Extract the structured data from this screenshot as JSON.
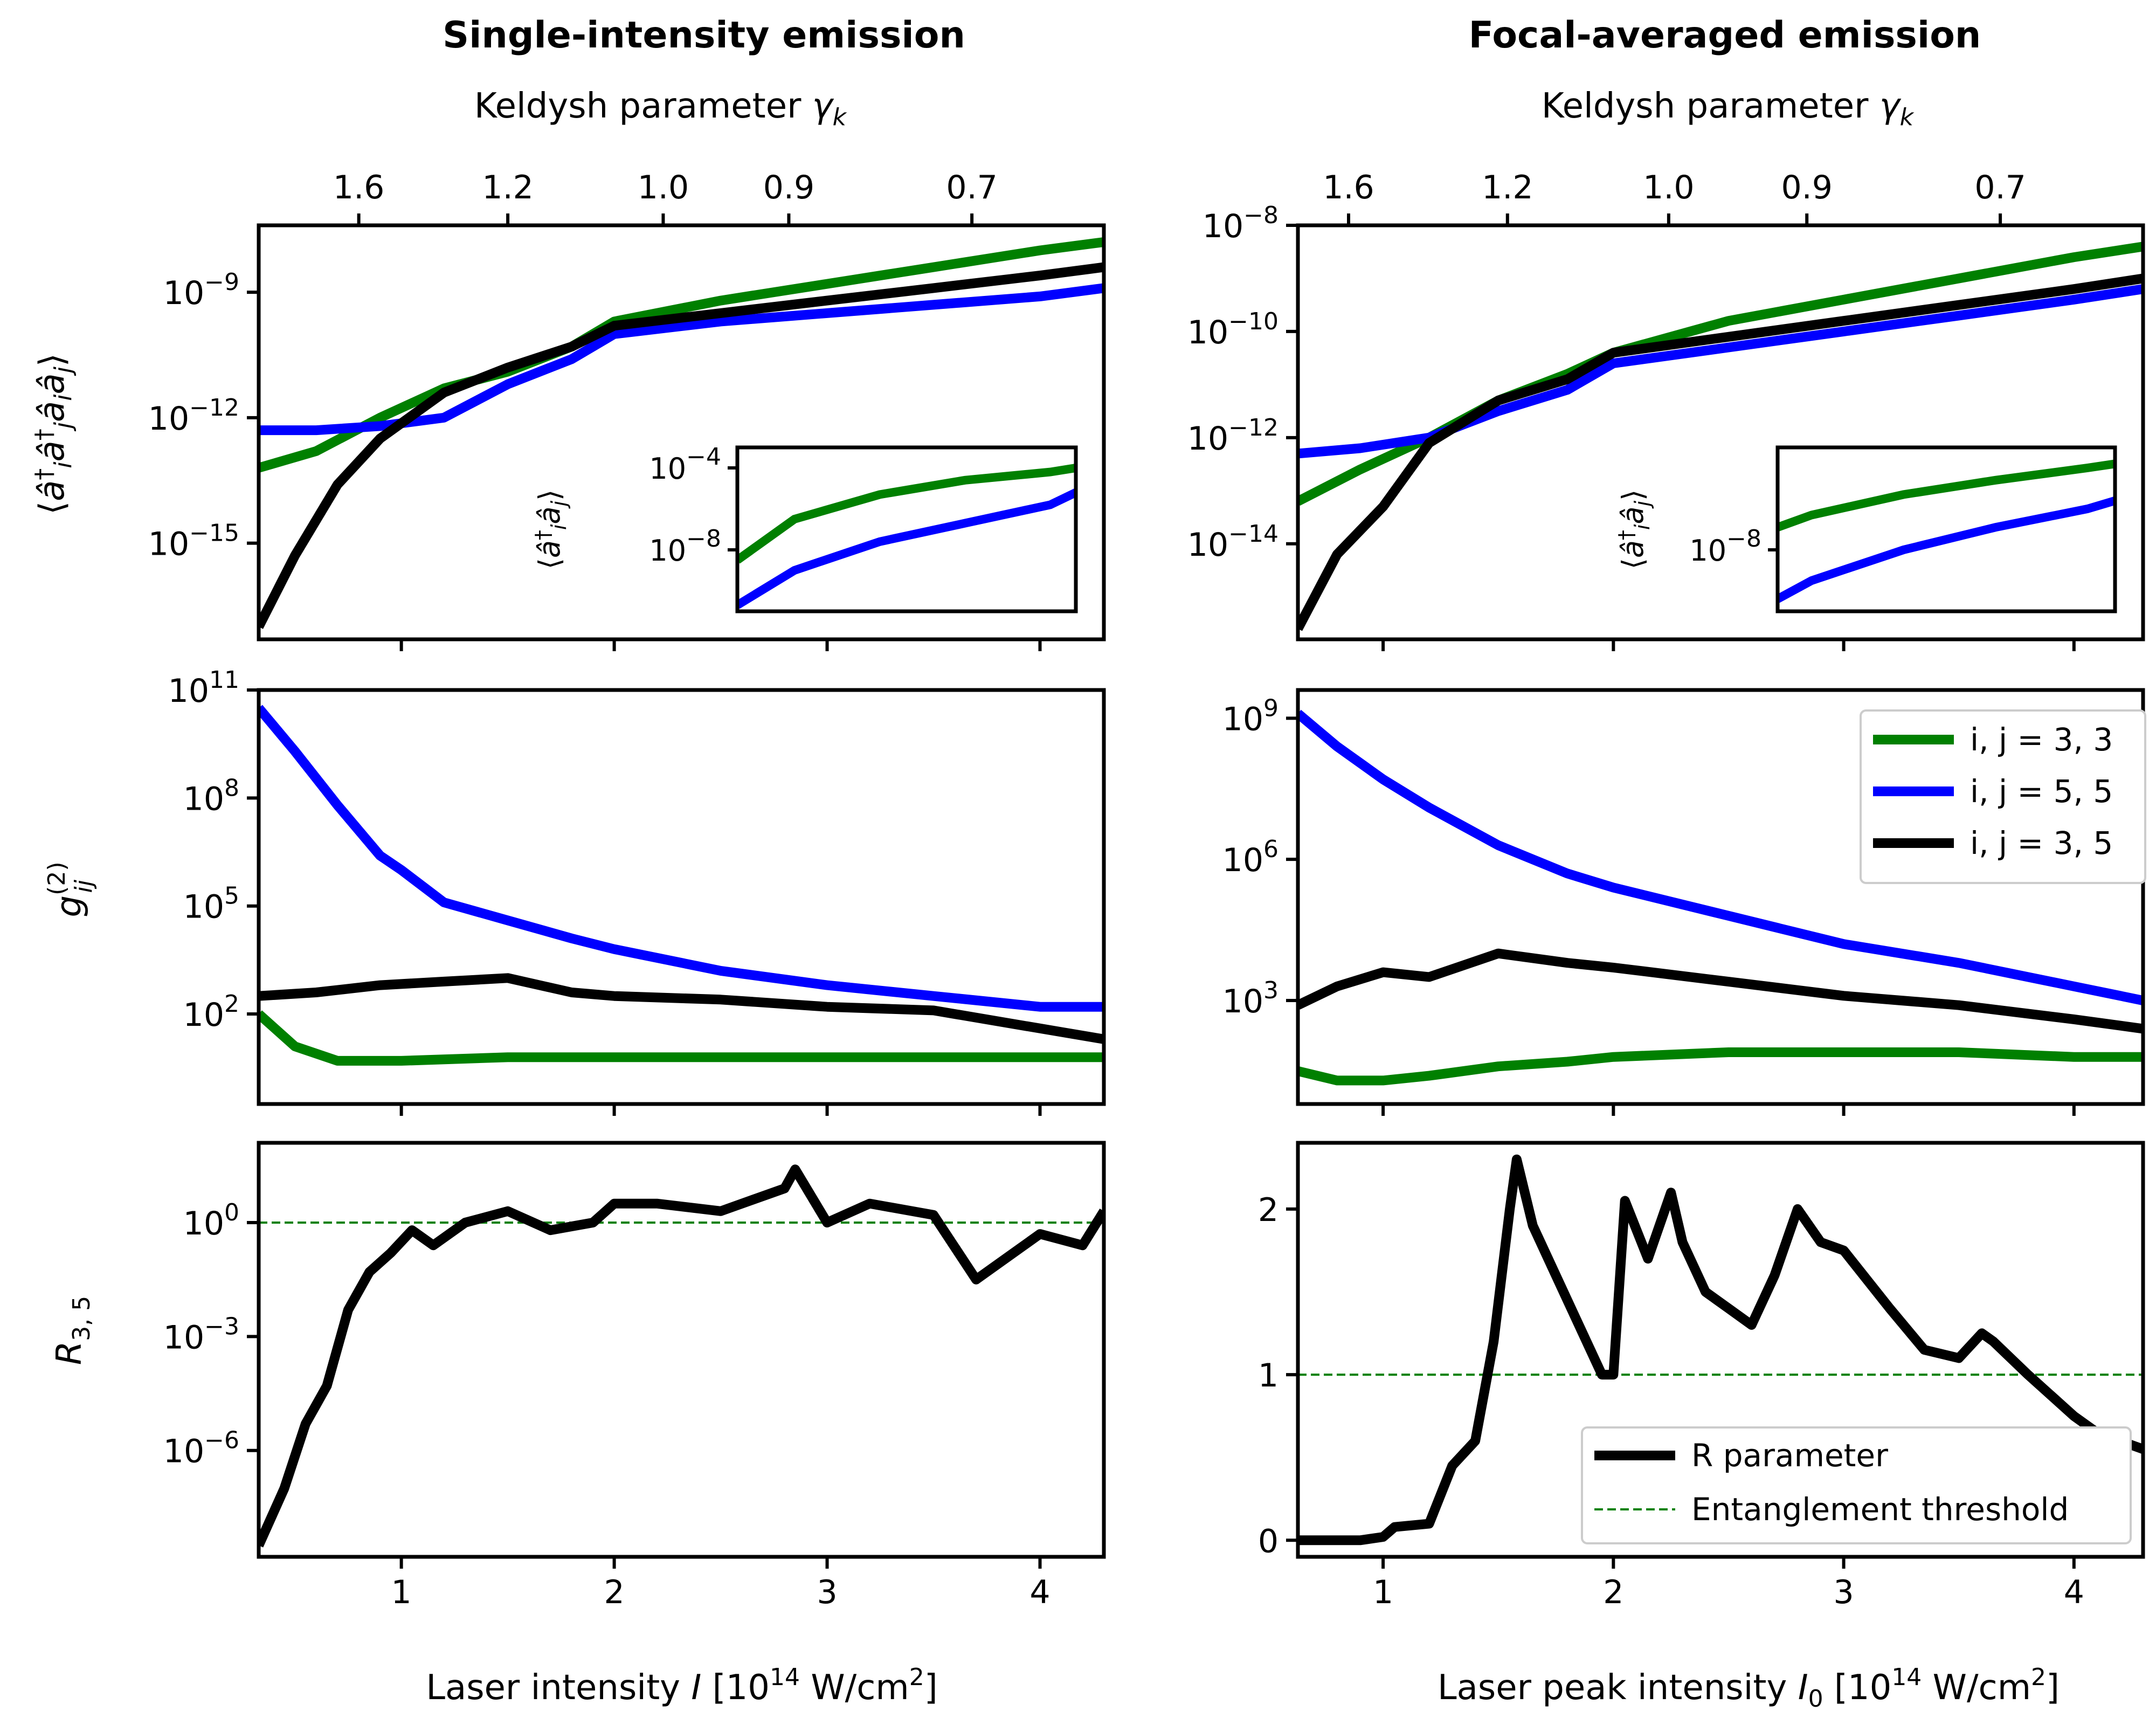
{
  "figure": {
    "left_title": "Single-intensity emission",
    "right_title": "Focal-averaged emission",
    "keldysh_label": "Keldysh parameter γ_k",
    "keldysh_ticks": [
      "1.6",
      "1.2",
      "1.0",
      "0.9",
      "0.7"
    ],
    "left_xlabel": "Laser intensity I [10^14 W/cm^2]",
    "right_xlabel": "Laser peak intensity I_0 [10^14 W/cm^2]",
    "row_ylabels": [
      "⟨â_i† â_j† â_i â_j⟩",
      "g_ij^(2)",
      "R_3,5"
    ],
    "inset_ylabel": "⟨â_i† â_j⟩",
    "colors": {
      "green": "#008000",
      "blue": "#0000ff",
      "black": "#000000",
      "threshold": "#008000"
    }
  },
  "legend": {
    "series": [
      "i, j = 3, 3",
      "i, j = 5, 5",
      "i, j = 3, 5"
    ],
    "r_parameter": "R parameter",
    "threshold": "Entanglement threshold"
  },
  "chart_data": [
    {
      "id": "left_top",
      "type": "line",
      "yscale": "log",
      "xlim": [
        0.33,
        4.3
      ],
      "ylim_log10": [
        -17.3,
        -7.4
      ],
      "xticks": [
        "1",
        "2",
        "3",
        "4"
      ],
      "yticks": [
        "10^-9",
        "10^-12",
        "10^-15"
      ],
      "series": [
        {
          "name": "i, j = 3, 3",
          "color": "#008000",
          "x": [
            0.33,
            0.6,
            0.9,
            1.2,
            1.5,
            1.8,
            2.0,
            2.5,
            3.0,
            3.5,
            4.0,
            4.3
          ],
          "y_log10": [
            -13.2,
            -12.8,
            -12.0,
            -11.3,
            -10.9,
            -10.3,
            -9.7,
            -9.2,
            -8.8,
            -8.4,
            -8.0,
            -7.8
          ]
        },
        {
          "name": "i, j = 5, 5",
          "color": "#0000ff",
          "x": [
            0.33,
            0.6,
            0.9,
            1.2,
            1.5,
            1.8,
            2.0,
            2.5,
            3.0,
            3.5,
            4.0,
            4.3
          ],
          "y_log10": [
            -12.3,
            -12.3,
            -12.2,
            -12.0,
            -11.2,
            -10.6,
            -10.0,
            -9.7,
            -9.5,
            -9.3,
            -9.1,
            -8.9
          ]
        },
        {
          "name": "i, j = 3, 5",
          "color": "#000000",
          "x": [
            0.33,
            0.5,
            0.7,
            0.9,
            1.2,
            1.5,
            1.8,
            2.0,
            2.5,
            3.0,
            3.5,
            4.0,
            4.3
          ],
          "y_log10": [
            -17.0,
            -15.3,
            -13.6,
            -12.5,
            -11.4,
            -10.8,
            -10.3,
            -9.8,
            -9.5,
            -9.2,
            -8.9,
            -8.6,
            -8.4
          ]
        }
      ],
      "inset": {
        "ylim_log10": [
          -11.0,
          -3.0
        ],
        "yticks": [
          "10^-4",
          "10^-8"
        ],
        "series": [
          {
            "name": "i, j = 3, 3",
            "color": "#008000",
            "x": [
              0.33,
              1,
              2,
              3,
              4,
              4.3
            ],
            "y_log10": [
              -8.5,
              -6.5,
              -5.3,
              -4.6,
              -4.2,
              -4.0
            ]
          },
          {
            "name": "i, j = 5, 5",
            "color": "#0000ff",
            "x": [
              0.33,
              1,
              2,
              3,
              4,
              4.3
            ],
            "y_log10": [
              -10.7,
              -9.0,
              -7.6,
              -6.7,
              -5.8,
              -5.2
            ]
          }
        ]
      }
    },
    {
      "id": "right_top",
      "type": "line",
      "yscale": "log",
      "xlim": [
        0.63,
        4.3
      ],
      "ylim_log10": [
        -15.8,
        -8.0
      ],
      "xticks": [
        "1",
        "2",
        "3",
        "4"
      ],
      "yticks": [
        "10^-8",
        "10^-10",
        "10^-12",
        "10^-14"
      ],
      "series": [
        {
          "name": "i, j = 3, 3",
          "color": "#008000",
          "x": [
            0.63,
            0.9,
            1.2,
            1.5,
            1.8,
            2.0,
            2.5,
            3.0,
            3.5,
            4.0,
            4.3
          ],
          "y_log10": [
            -13.2,
            -12.6,
            -12.0,
            -11.3,
            -10.8,
            -10.4,
            -9.8,
            -9.4,
            -9.0,
            -8.6,
            -8.4
          ]
        },
        {
          "name": "i, j = 5, 5",
          "color": "#0000ff",
          "x": [
            0.63,
            0.9,
            1.2,
            1.5,
            1.8,
            2.0,
            2.5,
            3.0,
            3.5,
            4.0,
            4.3
          ],
          "y_log10": [
            -12.3,
            -12.2,
            -12.0,
            -11.5,
            -11.1,
            -10.6,
            -10.3,
            -10.0,
            -9.7,
            -9.4,
            -9.2
          ]
        },
        {
          "name": "i, j = 3, 5",
          "color": "#000000",
          "x": [
            0.63,
            0.8,
            1.0,
            1.2,
            1.5,
            1.8,
            2.0,
            2.5,
            3.0,
            3.5,
            4.0,
            4.3
          ],
          "y_log10": [
            -15.6,
            -14.2,
            -13.3,
            -12.1,
            -11.3,
            -10.9,
            -10.4,
            -10.1,
            -9.8,
            -9.5,
            -9.2,
            -9.0
          ]
        }
      ],
      "inset": {
        "ylim_log10": [
          -11.0,
          -3.0
        ],
        "yticks": [
          "10^-8"
        ],
        "series": [
          {
            "name": "i, j = 3, 3",
            "color": "#008000",
            "x": [
              0.63,
              1,
              2,
              3,
              4,
              4.3
            ],
            "y_log10": [
              -6.9,
              -6.3,
              -5.3,
              -4.6,
              -4.0,
              -3.8
            ]
          },
          {
            "name": "i, j = 5, 5",
            "color": "#0000ff",
            "x": [
              0.63,
              1,
              2,
              3,
              4,
              4.3
            ],
            "y_log10": [
              -10.4,
              -9.5,
              -8.0,
              -6.9,
              -6.0,
              -5.6
            ]
          }
        ]
      }
    },
    {
      "id": "left_mid",
      "type": "line",
      "yscale": "log",
      "xlim": [
        0.33,
        4.3
      ],
      "ylim_log10": [
        -0.5,
        11.0
      ],
      "xticks": [
        "1",
        "2",
        "3",
        "4"
      ],
      "yticks": [
        "10^11",
        "10^8",
        "10^5",
        "10^2"
      ],
      "series": [
        {
          "name": "i, j = 5, 5",
          "color": "#0000ff",
          "x": [
            0.33,
            0.5,
            0.7,
            0.9,
            1.0,
            1.2,
            1.5,
            1.8,
            2.0,
            2.5,
            3.0,
            3.5,
            4.0,
            4.3
          ],
          "y_log10": [
            10.5,
            9.3,
            7.8,
            6.4,
            6.0,
            5.1,
            4.6,
            4.1,
            3.8,
            3.2,
            2.8,
            2.5,
            2.2,
            2.2
          ]
        },
        {
          "name": "i, j = 3, 5",
          "color": "#000000",
          "x": [
            0.33,
            0.6,
            0.9,
            1.2,
            1.5,
            1.8,
            2.0,
            2.5,
            3.0,
            3.5,
            4.0,
            4.3
          ],
          "y_log10": [
            2.5,
            2.6,
            2.8,
            2.9,
            3.0,
            2.6,
            2.5,
            2.4,
            2.2,
            2.1,
            1.6,
            1.3
          ]
        },
        {
          "name": "i, j = 3, 3",
          "color": "#008000",
          "x": [
            0.33,
            0.5,
            0.7,
            1.0,
            1.5,
            2.0,
            2.5,
            3.0,
            3.5,
            4.0,
            4.3
          ],
          "y_log10": [
            2.0,
            1.1,
            0.7,
            0.7,
            0.8,
            0.8,
            0.8,
            0.8,
            0.8,
            0.8,
            0.8
          ]
        }
      ]
    },
    {
      "id": "right_mid",
      "type": "line",
      "yscale": "log",
      "xlim": [
        0.63,
        4.3
      ],
      "ylim_log10": [
        0.8,
        9.6
      ],
      "xticks": [
        "1",
        "2",
        "3",
        "4"
      ],
      "yticks": [
        "10^9",
        "10^6",
        "10^3"
      ],
      "series": [
        {
          "name": "i, j = 5, 5",
          "color": "#0000ff",
          "x": [
            0.63,
            0.8,
            1.0,
            1.2,
            1.5,
            1.8,
            2.0,
            2.5,
            3.0,
            3.5,
            4.0,
            4.3
          ],
          "y_log10": [
            9.1,
            8.4,
            7.7,
            7.1,
            6.3,
            5.7,
            5.4,
            4.8,
            4.2,
            3.8,
            3.3,
            3.0
          ]
        },
        {
          "name": "i, j = 3, 5",
          "color": "#000000",
          "x": [
            0.63,
            0.8,
            1.0,
            1.2,
            1.5,
            1.8,
            2.0,
            2.5,
            3.0,
            3.5,
            4.0,
            4.3
          ],
          "y_log10": [
            2.9,
            3.3,
            3.6,
            3.5,
            4.0,
            3.8,
            3.7,
            3.4,
            3.1,
            2.9,
            2.6,
            2.4
          ]
        },
        {
          "name": "i, j = 3, 3",
          "color": "#008000",
          "x": [
            0.63,
            0.8,
            1.0,
            1.2,
            1.5,
            1.8,
            2.0,
            2.5,
            3.0,
            3.5,
            4.0,
            4.3
          ],
          "y_log10": [
            1.5,
            1.3,
            1.3,
            1.4,
            1.6,
            1.7,
            1.8,
            1.9,
            1.9,
            1.9,
            1.8,
            1.8
          ]
        }
      ]
    },
    {
      "id": "left_bottom",
      "type": "line",
      "yscale": "log",
      "xlim": [
        0.33,
        4.3
      ],
      "ylim_log10": [
        -8.8,
        2.1
      ],
      "xticks": [
        "1",
        "2",
        "3",
        "4"
      ],
      "yticks": [
        "10^0",
        "10^-3",
        "10^-6"
      ],
      "threshold": 0,
      "series": [
        {
          "name": "R parameter",
          "color": "#000000",
          "x": [
            0.33,
            0.45,
            0.55,
            0.65,
            0.75,
            0.85,
            0.95,
            1.05,
            1.15,
            1.3,
            1.5,
            1.7,
            1.9,
            2.0,
            2.2,
            2.5,
            2.8,
            2.85,
            3.0,
            3.2,
            3.5,
            3.7,
            4.0,
            4.2,
            4.3
          ],
          "y_log10": [
            -8.5,
            -7.0,
            -5.3,
            -4.3,
            -2.3,
            -1.3,
            -0.8,
            -0.2,
            -0.6,
            0.0,
            0.3,
            -0.2,
            0.0,
            0.5,
            0.5,
            0.3,
            0.9,
            1.4,
            0.0,
            0.5,
            0.2,
            -1.5,
            -0.3,
            -0.6,
            0.3
          ]
        }
      ]
    },
    {
      "id": "right_bottom",
      "type": "line",
      "yscale": "linear",
      "xlim": [
        0.63,
        4.3
      ],
      "ylim": [
        -0.1,
        2.4
      ],
      "xticks": [
        "1",
        "2",
        "3",
        "4"
      ],
      "yticks": [
        "2",
        "1",
        "0"
      ],
      "threshold": 1,
      "series": [
        {
          "name": "R parameter",
          "color": "#000000",
          "x": [
            0.63,
            0.9,
            1.0,
            1.05,
            1.2,
            1.3,
            1.4,
            1.48,
            1.55,
            1.58,
            1.65,
            1.75,
            1.85,
            1.95,
            2.0,
            2.05,
            2.15,
            2.25,
            2.3,
            2.4,
            2.5,
            2.6,
            2.7,
            2.8,
            2.9,
            3.0,
            3.2,
            3.35,
            3.5,
            3.6,
            3.65,
            3.8,
            4.0,
            4.1,
            4.2,
            4.3
          ],
          "y_log10": [
            0.0,
            0.0,
            0.02,
            0.08,
            0.1,
            0.45,
            0.6,
            1.2,
            2.0,
            2.3,
            1.9,
            1.6,
            1.3,
            1.0,
            1.0,
            2.05,
            1.7,
            2.1,
            1.8,
            1.5,
            1.4,
            1.3,
            1.6,
            2.0,
            1.8,
            1.75,
            1.4,
            1.15,
            1.1,
            1.25,
            1.2,
            1.0,
            0.75,
            0.65,
            0.6,
            0.55
          ]
        }
      ]
    }
  ]
}
